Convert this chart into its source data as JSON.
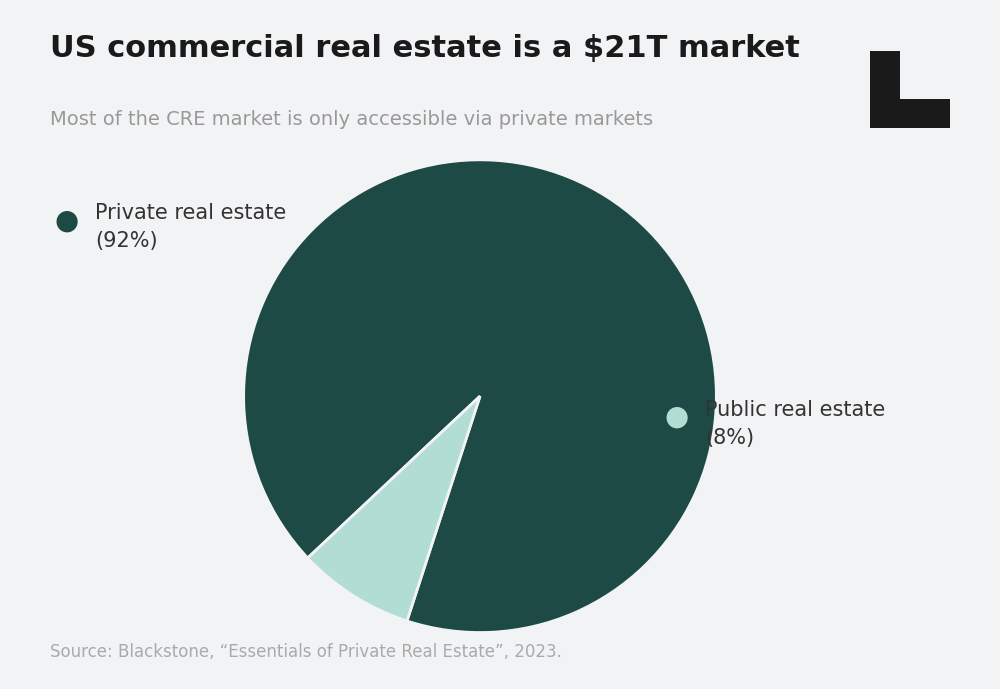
{
  "title": "US commercial real estate is a $21T market",
  "subtitle": "Most of the CRE market is only accessible via private markets",
  "slices": [
    92,
    8
  ],
  "labels_private": "Private real estate\n(92%)",
  "labels_public": "Public real estate\n(8%)",
  "colors": [
    "#1e4a45",
    "#b2ddd4"
  ],
  "background_color": "#f2f3f5",
  "source_text": "Source: Blackstone, “Essentials of Private Real Estate”, 2023.",
  "title_fontsize": 22,
  "subtitle_fontsize": 14,
  "source_fontsize": 12,
  "legend_fontsize": 15,
  "start_angle": 252
}
